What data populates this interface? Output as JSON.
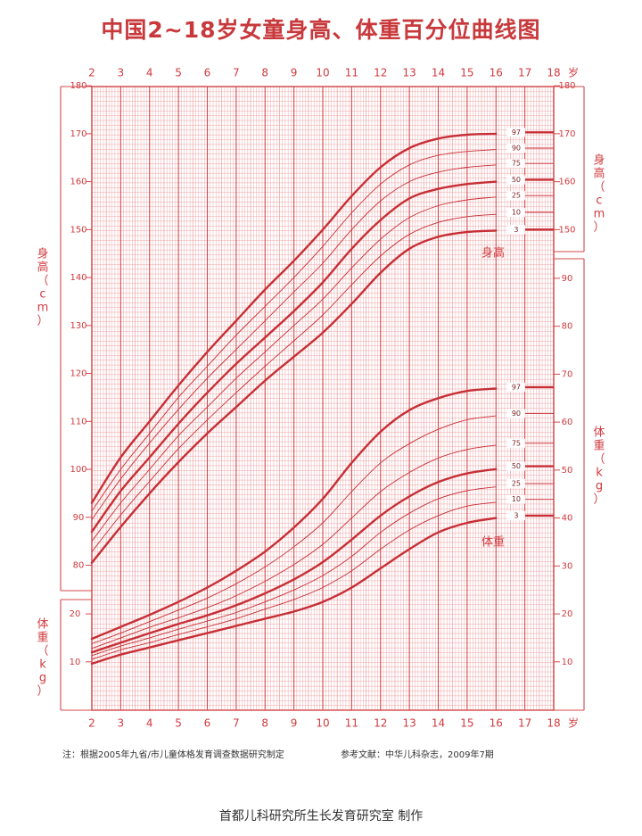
{
  "header": {
    "title": "中国2~18岁女童身高、体重百分位曲线图"
  },
  "notes": {
    "left": "注：根据2005年九省/市儿童体格发育调查数据研究制定",
    "right": "参考文献：中华儿科杂志，2009年7期"
  },
  "footer": {
    "maker": "首都儿科研究所生长发育研究室  制作"
  },
  "colors": {
    "grid_major": "#d4484a",
    "grid_minor": "#f0a6a8",
    "curve": "#c62f35",
    "text": "#d03a3e"
  },
  "chart_data": [
    {
      "type": "line",
      "name": "身高",
      "label": "身高",
      "unit_label": "身高（cm）",
      "x_unit": "岁",
      "xlim": [
        2,
        18
      ],
      "x_ticks": [
        2,
        3,
        4,
        5,
        6,
        7,
        8,
        9,
        10,
        11,
        12,
        13,
        14,
        15,
        16,
        17,
        18
      ],
      "ylim": [
        78,
        180
      ],
      "y_ticks": [
        80,
        90,
        100,
        110,
        120,
        130,
        140,
        150,
        160,
        170,
        180
      ],
      "x": [
        2,
        3,
        4,
        5,
        6,
        7,
        8,
        9,
        10,
        11,
        12,
        13,
        14,
        15,
        16,
        17,
        18
      ],
      "series": [
        {
          "name": "3",
          "values": [
            80.5,
            88.0,
            95.0,
            101.5,
            107.5,
            113.0,
            118.5,
            123.5,
            128.5,
            134.5,
            141.0,
            146.0,
            148.5,
            149.5,
            149.8,
            150.0,
            150.0
          ]
        },
        {
          "name": "10",
          "values": [
            82.8,
            90.5,
            97.5,
            104.3,
            110.3,
            116.0,
            121.5,
            126.8,
            132.2,
            138.5,
            144.5,
            149.0,
            151.5,
            152.7,
            153.2,
            153.5,
            153.6
          ]
        },
        {
          "name": "25",
          "values": [
            85.0,
            93.0,
            100.0,
            107.0,
            113.0,
            119.0,
            124.5,
            130.0,
            135.5,
            142.0,
            148.0,
            152.5,
            155.0,
            156.2,
            156.8,
            157.0,
            157.1
          ]
        },
        {
          "name": "50",
          "values": [
            87.0,
            95.5,
            102.5,
            109.5,
            116.0,
            122.0,
            127.5,
            133.0,
            139.0,
            146.0,
            152.0,
            156.5,
            158.5,
            159.5,
            160.0,
            160.3,
            160.4
          ]
        },
        {
          "name": "75",
          "values": [
            89.5,
            98.0,
            105.5,
            112.5,
            119.0,
            125.0,
            131.0,
            137.0,
            143.0,
            150.0,
            156.0,
            160.0,
            162.0,
            163.0,
            163.5,
            163.7,
            163.8
          ]
        },
        {
          "name": "90",
          "values": [
            91.3,
            100.0,
            107.5,
            115.0,
            121.5,
            128.0,
            134.0,
            140.0,
            146.5,
            153.5,
            159.5,
            163.5,
            165.5,
            166.3,
            166.7,
            166.9,
            167.0
          ]
        },
        {
          "name": "97",
          "values": [
            93.0,
            102.5,
            110.0,
            117.5,
            124.5,
            131.0,
            137.5,
            143.5,
            150.0,
            157.0,
            163.0,
            167.0,
            169.0,
            169.8,
            170.0,
            170.2,
            170.3
          ]
        }
      ]
    },
    {
      "type": "line",
      "name": "体重",
      "label": "体重",
      "unit_label": "体重（kg）",
      "x_unit": "岁",
      "xlim": [
        2,
        18
      ],
      "x_ticks": [
        2,
        3,
        4,
        5,
        6,
        7,
        8,
        9,
        10,
        11,
        12,
        13,
        14,
        15,
        16,
        17,
        18
      ],
      "ylim": [
        4,
        98
      ],
      "y_ticks_left": [
        10,
        20
      ],
      "y_ticks_right": [
        10,
        20,
        30,
        40,
        50,
        60,
        70,
        80,
        90
      ],
      "x": [
        2,
        3,
        4,
        5,
        6,
        7,
        8,
        9,
        10,
        11,
        12,
        13,
        14,
        15,
        16,
        17,
        18
      ],
      "series": [
        {
          "name": "3",
          "values": [
            9.6,
            11.5,
            13.0,
            14.5,
            16.0,
            17.5,
            19.0,
            20.5,
            22.5,
            25.5,
            29.5,
            33.5,
            37.0,
            39.0,
            40.0,
            40.3,
            40.5
          ]
        },
        {
          "name": "10",
          "values": [
            10.5,
            12.5,
            14.0,
            15.7,
            17.3,
            19.0,
            21.0,
            23.0,
            25.5,
            29.0,
            33.5,
            37.5,
            40.5,
            42.5,
            43.3,
            43.7,
            43.9
          ]
        },
        {
          "name": "25",
          "values": [
            11.3,
            13.3,
            15.0,
            16.8,
            18.5,
            20.3,
            22.5,
            25.0,
            28.0,
            32.0,
            37.0,
            41.0,
            44.0,
            45.7,
            46.5,
            47.0,
            47.2
          ]
        },
        {
          "name": "50",
          "values": [
            12.0,
            14.0,
            16.0,
            17.9,
            19.7,
            21.8,
            24.3,
            27.2,
            30.8,
            35.5,
            40.5,
            44.5,
            47.5,
            49.3,
            50.2,
            50.6,
            50.8
          ]
        },
        {
          "name": "75",
          "values": [
            12.8,
            15.0,
            17.2,
            19.2,
            21.3,
            23.8,
            26.8,
            30.3,
            34.5,
            40.0,
            45.5,
            49.5,
            52.5,
            54.3,
            55.2,
            55.5,
            55.6
          ]
        },
        {
          "name": "90",
          "values": [
            13.8,
            16.0,
            18.4,
            20.8,
            23.3,
            26.3,
            29.8,
            34.0,
            39.0,
            45.5,
            51.5,
            55.5,
            58.5,
            60.5,
            61.3,
            61.6,
            61.8
          ]
        },
        {
          "name": "97",
          "values": [
            14.8,
            17.3,
            19.8,
            22.5,
            25.5,
            29.0,
            33.0,
            38.0,
            44.0,
            51.5,
            58.0,
            62.5,
            65.0,
            66.5,
            67.0,
            67.2,
            67.3
          ]
        }
      ]
    }
  ]
}
